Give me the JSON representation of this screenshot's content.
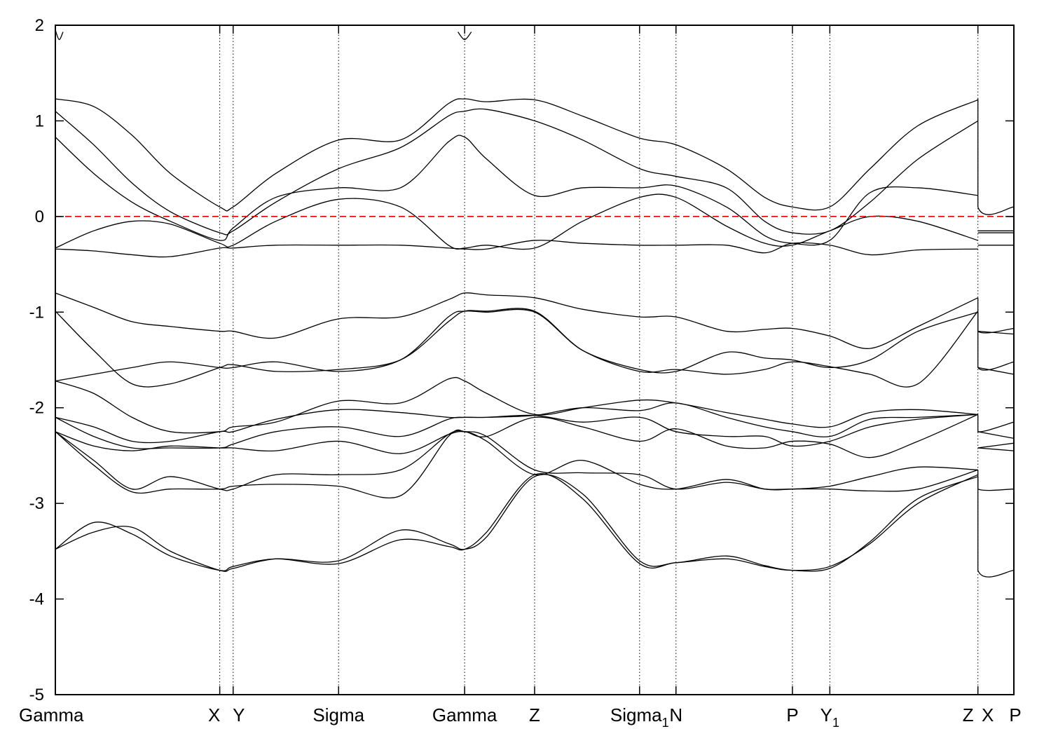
{
  "chart_data": {
    "type": "line",
    "title": "",
    "xlabel": "",
    "ylabel": "",
    "ylim": [
      -5,
      2
    ],
    "yticks": [
      2,
      1,
      0,
      -1,
      -2,
      -3,
      -4,
      -5
    ],
    "ytick_labels": [
      "2",
      "1",
      "0",
      "-1",
      "-2",
      "-3",
      "-4",
      "-5"
    ],
    "grid": false,
    "xlim": [
      0,
      1
    ],
    "kpoints": [
      {
        "label": "Gamma",
        "x": 0.0,
        "line": false
      },
      {
        "label": "X",
        "x": 0.1715,
        "line": true
      },
      {
        "label": "Y",
        "x": 0.1855,
        "line": true
      },
      {
        "label": "Sigma",
        "x": 0.2955,
        "line": true
      },
      {
        "label": "Gamma",
        "x": 0.427,
        "line": true
      },
      {
        "label": "Z",
        "x": 0.5,
        "line": true
      },
      {
        "label": "Sigma",
        "sub": "1",
        "x": 0.6095,
        "line": true
      },
      {
        "label": "N",
        "x": 0.6475,
        "line": true
      },
      {
        "label": "P",
        "x": 0.769,
        "line": true
      },
      {
        "label": "Y",
        "sub": "1",
        "x": 0.808,
        "line": true
      },
      {
        "label": "Z",
        "x": 0.9625,
        "line": true
      },
      {
        "label": "X",
        "x": 0.9625,
        "line": false
      },
      {
        "label": "P",
        "x": 1.0,
        "line": false
      }
    ],
    "fermi_level": {
      "y": 0,
      "color": "#e00000",
      "style": "dashed"
    },
    "line_color": "#000000",
    "series": [
      {
        "x": [
          0,
          0.04,
          0.08,
          0.12,
          0.1715,
          0.1855,
          0.23,
          0.2955,
          0.36,
          0.41,
          0.427,
          0.45,
          0.5,
          0.55,
          0.6095,
          0.6475,
          0.7,
          0.74,
          0.769,
          0.808,
          0.85,
          0.9,
          0.9625
        ],
        "y": [
          1.23,
          1.15,
          0.85,
          0.45,
          0.1,
          0.1,
          0.45,
          0.8,
          0.8,
          1.18,
          1.23,
          1.2,
          1.22,
          1.05,
          0.82,
          0.75,
          0.5,
          0.2,
          0.1,
          0.1,
          0.5,
          0.95,
          1.22
        ]
      },
      {
        "x": [
          0,
          0.04,
          0.08,
          0.12,
          0.1715,
          0.1855,
          0.23,
          0.2955,
          0.36,
          0.41,
          0.427,
          0.45,
          0.5,
          0.55,
          0.6095,
          0.6475,
          0.7,
          0.74,
          0.769,
          0.808,
          0.85,
          0.9,
          0.9625
        ],
        "y": [
          1.1,
          0.75,
          0.35,
          0.05,
          -0.17,
          -0.15,
          0.15,
          0.5,
          0.72,
          1.05,
          1.1,
          1.12,
          1.0,
          0.8,
          0.5,
          0.42,
          0.3,
          -0.05,
          -0.17,
          -0.15,
          0.15,
          0.6,
          1.0
        ]
      },
      {
        "x": [
          0,
          0.04,
          0.08,
          0.12,
          0.1715,
          0.1855,
          0.23,
          0.2955,
          0.36,
          0.41,
          0.427,
          0.45,
          0.5,
          0.55,
          0.6095,
          0.6475,
          0.7,
          0.74,
          0.769,
          0.808,
          0.85,
          0.9,
          0.9625
        ],
        "y": [
          0.83,
          0.45,
          0.15,
          -0.05,
          -0.25,
          -0.12,
          0.2,
          0.3,
          0.3,
          0.78,
          0.83,
          0.6,
          0.22,
          0.3,
          0.3,
          0.32,
          0.1,
          -0.2,
          -0.28,
          -0.25,
          0.25,
          0.3,
          0.22
        ]
      },
      {
        "x": [
          0,
          0.04,
          0.08,
          0.12,
          0.1715,
          0.1855,
          0.23,
          0.2955,
          0.36,
          0.41,
          0.427,
          0.45,
          0.5,
          0.55,
          0.6095,
          0.6475,
          0.7,
          0.74,
          0.769,
          0.808,
          0.85,
          0.9,
          0.9625
        ],
        "y": [
          -0.33,
          -0.15,
          -0.05,
          -0.08,
          -0.28,
          -0.3,
          -0.05,
          0.18,
          0.1,
          -0.3,
          -0.33,
          -0.3,
          -0.33,
          -0.05,
          0.2,
          0.2,
          -0.1,
          -0.28,
          -0.3,
          -0.15,
          0.0,
          -0.05,
          -0.25
        ]
      },
      {
        "x": [
          0,
          0.04,
          0.08,
          0.12,
          0.1715,
          0.1855,
          0.23,
          0.2955,
          0.36,
          0.41,
          0.427,
          0.45,
          0.5,
          0.55,
          0.6095,
          0.6475,
          0.7,
          0.74,
          0.769,
          0.808,
          0.85,
          0.9,
          0.9625
        ],
        "y": [
          -0.34,
          -0.36,
          -0.4,
          -0.42,
          -0.33,
          -0.33,
          -0.3,
          -0.3,
          -0.3,
          -0.33,
          -0.34,
          -0.34,
          -0.25,
          -0.28,
          -0.3,
          -0.3,
          -0.3,
          -0.38,
          -0.28,
          -0.3,
          -0.4,
          -0.35,
          -0.34
        ]
      },
      {
        "x": [
          0,
          0.04,
          0.08,
          0.12,
          0.1715,
          0.1855,
          0.23,
          0.2955,
          0.36,
          0.41,
          0.427,
          0.45,
          0.5,
          0.55,
          0.6095,
          0.6475,
          0.7,
          0.74,
          0.769,
          0.808,
          0.85,
          0.9,
          0.9625
        ],
        "y": [
          -0.8,
          -0.95,
          -1.1,
          -1.15,
          -1.2,
          -1.2,
          -1.27,
          -1.07,
          -1.05,
          -0.87,
          -0.8,
          -0.82,
          -0.85,
          -0.97,
          -1.05,
          -1.05,
          -1.2,
          -1.18,
          -1.17,
          -1.25,
          -1.38,
          -1.15,
          -0.85
        ]
      },
      {
        "x": [
          0,
          0.04,
          0.08,
          0.12,
          0.1715,
          0.1855,
          0.23,
          0.2955,
          0.36,
          0.41,
          0.427,
          0.45,
          0.5,
          0.55,
          0.6095,
          0.6475,
          0.7,
          0.74,
          0.769,
          0.808,
          0.85,
          0.9,
          0.9625
        ],
        "y": [
          -0.99,
          -1.4,
          -1.75,
          -1.75,
          -1.58,
          -1.55,
          -1.62,
          -1.6,
          -1.5,
          -1.1,
          -0.99,
          -0.99,
          -0.99,
          -1.4,
          -1.62,
          -1.6,
          -1.65,
          -1.6,
          -1.52,
          -1.57,
          -1.65,
          -1.75,
          -0.99
        ]
      },
      {
        "x": [
          0,
          0.04,
          0.08,
          0.12,
          0.1715,
          0.1855,
          0.23,
          0.2955,
          0.36,
          0.41,
          0.427,
          0.45,
          0.5,
          0.55,
          0.6095,
          0.6475,
          0.7,
          0.74,
          0.769,
          0.808,
          0.85,
          0.9,
          0.9625
        ],
        "y": [
          -1.72,
          -1.65,
          -1.58,
          -1.52,
          -1.58,
          -1.58,
          -1.52,
          -1.62,
          -1.5,
          -1.05,
          -0.99,
          -1.0,
          -1.0,
          -1.4,
          -1.6,
          -1.62,
          -1.42,
          -1.48,
          -1.5,
          -1.58,
          -1.5,
          -1.2,
          -1.0
        ]
      },
      {
        "x": [
          0,
          0.04,
          0.08,
          0.12,
          0.1715,
          0.1855,
          0.23,
          0.2955,
          0.36,
          0.41,
          0.427,
          0.45,
          0.5,
          0.55,
          0.6095,
          0.6475,
          0.7,
          0.74,
          0.769,
          0.808,
          0.85,
          0.9,
          0.9625
        ],
        "y": [
          -1.72,
          -1.85,
          -2.1,
          -2.25,
          -2.25,
          -2.2,
          -2.15,
          -1.93,
          -1.95,
          -1.7,
          -1.72,
          -1.85,
          -2.07,
          -2.0,
          -1.92,
          -1.95,
          -2.05,
          -2.12,
          -2.17,
          -2.2,
          -2.05,
          -2.02,
          -2.07
        ]
      },
      {
        "x": [
          0,
          0.04,
          0.08,
          0.12,
          0.1715,
          0.1855,
          0.23,
          0.2955,
          0.36,
          0.41,
          0.427,
          0.45,
          0.5,
          0.55,
          0.6095,
          0.6475,
          0.7,
          0.74,
          0.769,
          0.808,
          0.85,
          0.9,
          0.9625
        ],
        "y": [
          -2.1,
          -2.2,
          -2.35,
          -2.35,
          -2.25,
          -2.25,
          -2.12,
          -2.02,
          -2.05,
          -2.1,
          -2.1,
          -2.1,
          -2.08,
          -2.0,
          -2.03,
          -1.95,
          -2.1,
          -2.2,
          -2.25,
          -2.3,
          -2.12,
          -2.1,
          -2.07
        ]
      },
      {
        "x": [
          0,
          0.04,
          0.08,
          0.12,
          0.1715,
          0.1855,
          0.23,
          0.2955,
          0.36,
          0.41,
          0.427,
          0.45,
          0.5,
          0.55,
          0.6095,
          0.6475,
          0.7,
          0.74,
          0.769,
          0.808,
          0.85,
          0.9,
          0.9625
        ],
        "y": [
          -2.1,
          -2.3,
          -2.42,
          -2.42,
          -2.42,
          -2.38,
          -2.25,
          -2.2,
          -2.3,
          -2.12,
          -2.1,
          -2.1,
          -2.08,
          -2.15,
          -2.1,
          -2.25,
          -2.3,
          -2.3,
          -2.4,
          -2.35,
          -2.2,
          -2.12,
          -2.07
        ]
      },
      {
        "x": [
          0,
          0.04,
          0.08,
          0.12,
          0.1715,
          0.1855,
          0.23,
          0.2955,
          0.36,
          0.41,
          0.427,
          0.45,
          0.5,
          0.55,
          0.6095,
          0.6475,
          0.7,
          0.74,
          0.769,
          0.808,
          0.85,
          0.9,
          0.9625
        ],
        "y": [
          -2.25,
          -2.4,
          -2.45,
          -2.4,
          -2.42,
          -2.42,
          -2.45,
          -2.35,
          -2.48,
          -2.28,
          -2.25,
          -2.3,
          -2.1,
          -2.2,
          -2.35,
          -2.22,
          -2.4,
          -2.42,
          -2.35,
          -2.38,
          -2.52,
          -2.35,
          -2.07
        ]
      },
      {
        "x": [
          0,
          0.04,
          0.08,
          0.12,
          0.1715,
          0.1855,
          0.23,
          0.2955,
          0.36,
          0.41,
          0.427,
          0.45,
          0.5,
          0.55,
          0.6095,
          0.6475,
          0.7,
          0.74,
          0.769,
          0.808,
          0.85,
          0.9,
          0.9625
        ],
        "y": [
          -2.25,
          -2.55,
          -2.85,
          -2.72,
          -2.85,
          -2.85,
          -2.7,
          -2.7,
          -2.65,
          -2.28,
          -2.25,
          -2.3,
          -2.65,
          -2.68,
          -2.7,
          -2.85,
          -2.78,
          -2.85,
          -2.85,
          -2.85,
          -2.87,
          -2.85,
          -2.65
        ]
      },
      {
        "x": [
          0,
          0.04,
          0.08,
          0.12,
          0.1715,
          0.1855,
          0.23,
          0.2955,
          0.36,
          0.41,
          0.427,
          0.45,
          0.5,
          0.55,
          0.6095,
          0.6475,
          0.7,
          0.74,
          0.769,
          0.808,
          0.85,
          0.9,
          0.9625
        ],
        "y": [
          -2.25,
          -2.6,
          -2.88,
          -2.85,
          -2.85,
          -2.82,
          -2.8,
          -2.82,
          -2.92,
          -2.3,
          -2.25,
          -2.35,
          -2.7,
          -2.55,
          -2.8,
          -2.85,
          -2.75,
          -2.85,
          -2.85,
          -2.82,
          -2.72,
          -2.62,
          -2.65
        ]
      },
      {
        "x": [
          0,
          0.04,
          0.08,
          0.12,
          0.1715,
          0.1855,
          0.23,
          0.2955,
          0.36,
          0.41,
          0.427,
          0.45,
          0.5,
          0.55,
          0.6095,
          0.6475,
          0.7,
          0.74,
          0.769,
          0.808,
          0.85,
          0.9,
          0.9625
        ],
        "y": [
          -3.48,
          -3.3,
          -3.25,
          -3.5,
          -3.7,
          -3.68,
          -3.58,
          -3.6,
          -3.28,
          -3.42,
          -3.48,
          -3.35,
          -2.72,
          -2.9,
          -3.6,
          -3.62,
          -3.55,
          -3.65,
          -3.7,
          -3.68,
          -3.4,
          -2.95,
          -2.72
        ]
      },
      {
        "x": [
          0,
          0.04,
          0.08,
          0.12,
          0.1715,
          0.1855,
          0.23,
          0.2955,
          0.36,
          0.41,
          0.427,
          0.45,
          0.5,
          0.55,
          0.6095,
          0.6475,
          0.7,
          0.74,
          0.769,
          0.808,
          0.85,
          0.9,
          0.9625
        ],
        "y": [
          -3.48,
          -3.2,
          -3.32,
          -3.55,
          -3.7,
          -3.66,
          -3.58,
          -3.63,
          -3.38,
          -3.45,
          -3.48,
          -3.3,
          -2.7,
          -2.95,
          -3.63,
          -3.62,
          -3.58,
          -3.66,
          -3.7,
          -3.66,
          -3.42,
          -3.0,
          -2.7
        ]
      },
      {
        "x": [
          0,
          0.004,
          0.008
        ],
        "y": [
          1.95,
          1.85,
          1.93
        ]
      },
      {
        "x": [
          0.42,
          0.427,
          0.434
        ],
        "y": [
          1.93,
          1.85,
          1.93
        ]
      },
      {
        "x": [
          0.9625,
          0.9625,
          1.0
        ],
        "y": [
          1.23,
          0.1,
          0.1
        ]
      },
      {
        "x": [
          0.9625,
          1.0
        ],
        "y": [
          -0.15,
          -0.15
        ]
      },
      {
        "x": [
          0.9625,
          1.0
        ],
        "y": [
          -0.17,
          -0.17
        ]
      },
      {
        "x": [
          0.9625,
          1.0
        ],
        "y": [
          -0.3,
          -0.3
        ]
      },
      {
        "x": [
          0.9625,
          0.9625,
          1.0
        ],
        "y": [
          -0.85,
          -1.2,
          -1.17
        ]
      },
      {
        "x": [
          0.9625,
          1.0
        ],
        "y": [
          -1.2,
          -1.23
        ]
      },
      {
        "x": [
          0.9625,
          0.9625,
          1.0
        ],
        "y": [
          -1.0,
          -1.58,
          -1.52
        ]
      },
      {
        "x": [
          0.9625,
          1.0
        ],
        "y": [
          -1.58,
          -1.65
        ]
      },
      {
        "x": [
          0.9625,
          0.9625,
          1.0
        ],
        "y": [
          -2.07,
          -2.25,
          -2.15
        ]
      },
      {
        "x": [
          0.9625,
          1.0
        ],
        "y": [
          -2.25,
          -2.32
        ]
      },
      {
        "x": [
          0.9625,
          1.0
        ],
        "y": [
          -2.42,
          -2.37
        ]
      },
      {
        "x": [
          0.9625,
          1.0
        ],
        "y": [
          -2.42,
          -2.45
        ]
      },
      {
        "x": [
          0.9625,
          0.9625,
          1.0
        ],
        "y": [
          -2.65,
          -2.85,
          -2.85
        ]
      },
      {
        "x": [
          0.9625,
          0.9625,
          1.0
        ],
        "y": [
          -2.72,
          -3.7,
          -3.7
        ]
      }
    ]
  }
}
